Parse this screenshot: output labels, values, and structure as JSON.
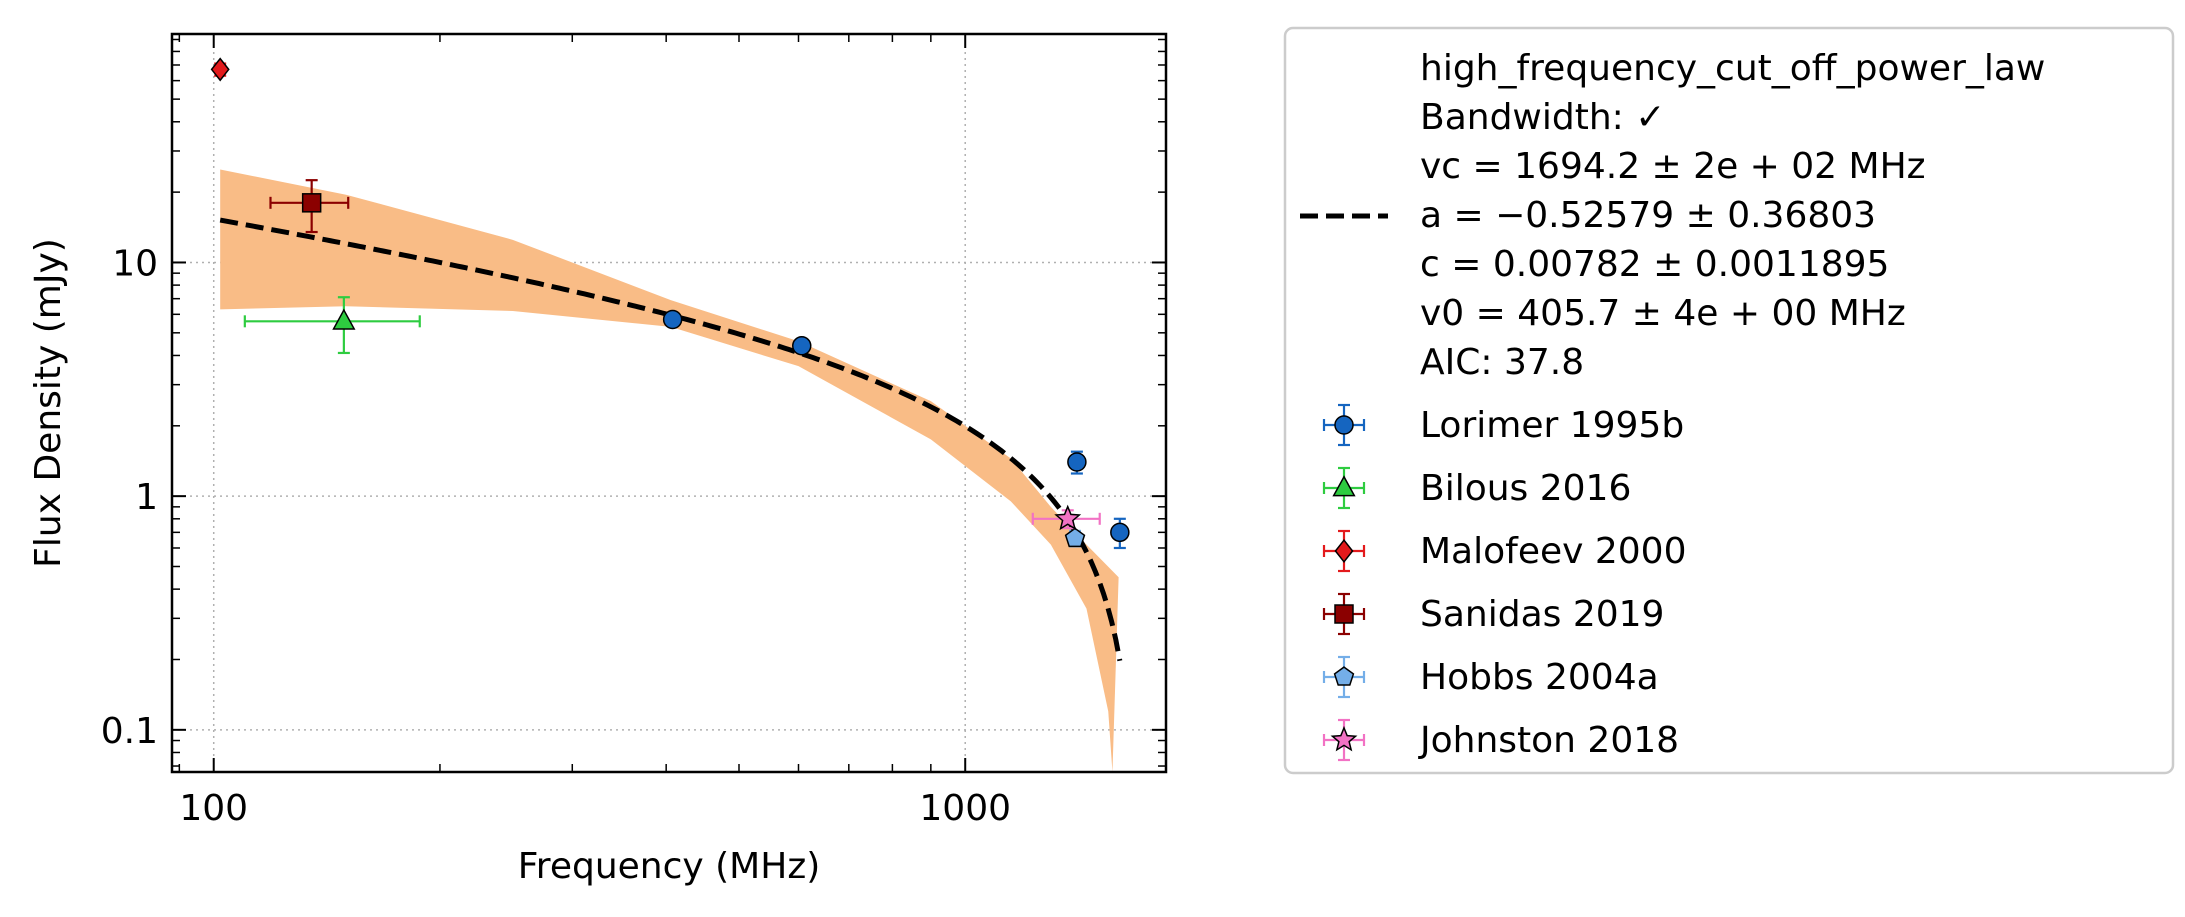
{
  "chart_data": {
    "type": "scatter",
    "title": "",
    "xlabel": "Frequency (MHz)",
    "ylabel": "Flux Density (mJy)",
    "xscale": "log",
    "yscale": "log",
    "xlim": [
      88,
      1850
    ],
    "ylim": [
      0.066,
      95
    ],
    "grid": true,
    "x_ticks": [
      {
        "value": 100,
        "label": "100"
      },
      {
        "value": 1000,
        "label": "1000"
      }
    ],
    "y_ticks": [
      {
        "value": 0.1,
        "label": "0.1"
      },
      {
        "value": 1,
        "label": "1"
      },
      {
        "value": 10,
        "label": "10"
      }
    ],
    "legend_position": "outside-right",
    "fit": {
      "name": "high_frequency_cut_off_power_law",
      "label_lines": [
        "high_frequency_cut_off_power_law",
        "Bandwidth: ✓",
        "vc = 1694.2 ± 2e + 02 MHz",
        "a = −0.52579 ± 0.36803",
        "c = 0.00782 ± 0.0011895",
        "v0 = 405.7 ± 4e + 00 MHz",
        "AIC: 37.8"
      ],
      "vc": 1694.2,
      "a": -0.52579,
      "c": 0.00782,
      "v0": 405.7,
      "line_color": "#000000",
      "band_color": "#f9bc86",
      "band_upper": [
        [
          102,
          25
        ],
        [
          150,
          19.5
        ],
        [
          250,
          12.5
        ],
        [
          405.7,
          6.9
        ],
        [
          600,
          4.6
        ],
        [
          900,
          2.55
        ],
        [
          1150,
          1.45
        ],
        [
          1300,
          0.9
        ],
        [
          1450,
          0.62
        ],
        [
          1600,
          0.45
        ]
      ],
      "band_lower": [
        [
          102,
          6.3
        ],
        [
          150,
          6.5
        ],
        [
          250,
          6.2
        ],
        [
          405.7,
          5.3
        ],
        [
          600,
          3.6
        ],
        [
          900,
          1.75
        ],
        [
          1150,
          0.95
        ],
        [
          1300,
          0.62
        ],
        [
          1450,
          0.33
        ],
        [
          1550,
          0.12
        ],
        [
          1570,
          0.066
        ]
      ]
    },
    "series": [
      {
        "name": "Lorimer 1995b",
        "marker": "circle",
        "color": "#1565c0",
        "points": [
          {
            "x": 408,
            "y": 5.7,
            "yerr": 0.3
          },
          {
            "x": 606,
            "y": 4.4,
            "yerr": 0.25
          },
          {
            "x": 1408,
            "y": 1.4,
            "yerr": 0.15
          },
          {
            "x": 1606,
            "y": 0.7,
            "yerr": 0.1
          }
        ]
      },
      {
        "name": "Bilous 2016",
        "marker": "triangle",
        "color": "#2ecc40",
        "points": [
          {
            "x": 149,
            "y": 5.6,
            "yerr": 1.5,
            "xlo": 110,
            "xhi": 188
          }
        ]
      },
      {
        "name": "Malofeev 2000",
        "marker": "diamond",
        "color": "#e31a1c",
        "points": [
          {
            "x": 102,
            "y": 67,
            "yerr": 4
          }
        ]
      },
      {
        "name": "Sanidas 2019",
        "marker": "square",
        "color": "#8b0000",
        "points": [
          {
            "x": 135,
            "y": 18,
            "yerr": 4.5,
            "xlo": 119,
            "xhi": 151
          }
        ]
      },
      {
        "name": "Hobbs 2004a",
        "marker": "pentagon",
        "color": "#74aee8",
        "points": [
          {
            "x": 1400,
            "y": 0.66,
            "yerr": 0.05
          }
        ]
      },
      {
        "name": "Johnston 2018",
        "marker": "star",
        "color": "#f272c4",
        "points": [
          {
            "x": 1369,
            "y": 0.8,
            "yerr": 0.07,
            "xlo": 1230,
            "xhi": 1510
          }
        ]
      }
    ]
  }
}
